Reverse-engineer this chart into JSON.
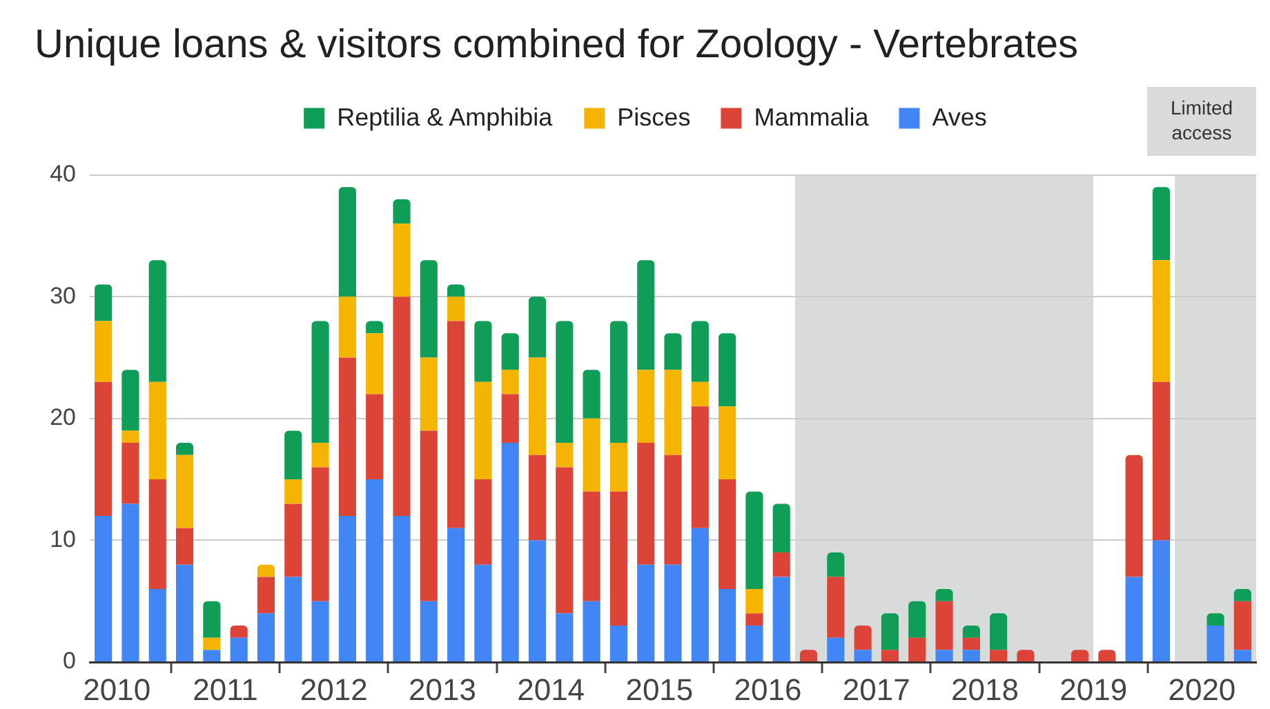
{
  "chart_data": {
    "type": "bar",
    "title": "Unique loans & visitors combined for Zoology - Vertebrates",
    "x": [
      2010.375,
      2010.625,
      2010.875,
      2011.125,
      2011.375,
      2011.625,
      2011.875,
      2012.125,
      2012.375,
      2012.625,
      2012.875,
      2013.125,
      2013.375,
      2013.625,
      2013.875,
      2014.125,
      2014.375,
      2014.625,
      2014.875,
      2015.125,
      2015.375,
      2015.625,
      2015.875,
      2016.125,
      2016.375,
      2016.625,
      2016.875,
      2017.125,
      2017.375,
      2017.625,
      2017.875,
      2018.125,
      2018.375,
      2018.625,
      2018.875,
      2019.375,
      2019.625,
      2019.875,
      2020.125,
      2020.625,
      2020.875
    ],
    "series": [
      {
        "name": "Aves",
        "color": "#4285f4",
        "values": [
          12,
          13,
          6,
          8,
          1,
          2,
          4,
          7,
          5,
          12,
          15,
          12,
          5,
          11,
          8,
          18,
          10,
          4,
          5,
          3,
          8,
          8,
          11,
          6,
          3,
          7,
          null,
          2,
          1,
          null,
          null,
          1,
          1,
          null,
          null,
          null,
          null,
          7,
          10,
          3,
          1
        ]
      },
      {
        "name": "Mammalia",
        "color": "#db4437",
        "values": [
          11,
          5,
          9,
          3,
          null,
          1,
          3,
          6,
          11,
          13,
          7,
          18,
          14,
          17,
          7,
          4,
          7,
          12,
          9,
          11,
          10,
          9,
          10,
          9,
          1,
          2,
          1,
          5,
          2,
          1,
          2,
          4,
          1,
          1,
          1,
          1,
          1,
          10,
          13,
          null,
          4
        ]
      },
      {
        "name": "Pisces",
        "color": "#f4b400",
        "values": [
          5,
          1,
          8,
          6,
          1,
          null,
          1,
          2,
          2,
          5,
          5,
          6,
          6,
          2,
          8,
          2,
          8,
          2,
          6,
          4,
          6,
          7,
          2,
          6,
          2,
          null,
          null,
          null,
          null,
          null,
          null,
          null,
          null,
          null,
          null,
          null,
          null,
          null,
          10,
          null,
          null
        ]
      },
      {
        "name": "Reptilia & Amphibia",
        "color": "#0f9d58",
        "values": [
          3,
          5,
          10,
          1,
          3,
          null,
          null,
          4,
          10,
          9,
          1,
          2,
          8,
          1,
          5,
          3,
          5,
          10,
          4,
          10,
          9,
          3,
          5,
          6,
          8,
          4,
          null,
          2,
          null,
          3,
          3,
          1,
          1,
          3,
          null,
          null,
          null,
          null,
          6,
          1,
          1
        ]
      }
    ],
    "stacked": true,
    "xlim": [
      2010.25,
      2021
    ],
    "xticks": [
      {
        "value": 2010.5,
        "label": "2010"
      },
      {
        "value": 2011,
        "label": null
      },
      {
        "value": 2011.5,
        "label": "2011"
      },
      {
        "value": 2012,
        "label": null
      },
      {
        "value": 2012.5,
        "label": "2012"
      },
      {
        "value": 2013,
        "label": null
      },
      {
        "value": 2013.5,
        "label": "2013"
      },
      {
        "value": 2014,
        "label": null
      },
      {
        "value": 2014.5,
        "label": "2014"
      },
      {
        "value": 2015,
        "label": null
      },
      {
        "value": 2015.5,
        "label": "2015"
      },
      {
        "value": 2016,
        "label": null
      },
      {
        "value": 2016.5,
        "label": "2016"
      },
      {
        "value": 2017,
        "label": null
      },
      {
        "value": 2017.5,
        "label": "2017"
      },
      {
        "value": 2018,
        "label": null
      },
      {
        "value": 2018.5,
        "label": "2018"
      },
      {
        "value": 2019,
        "label": null
      },
      {
        "value": 2019.5,
        "label": "2019"
      },
      {
        "value": 2020,
        "label": null
      },
      {
        "value": 2020.5,
        "label": "2020"
      }
    ],
    "ylim": [
      0,
      40
    ],
    "yticks": [
      0,
      10,
      20,
      30,
      40
    ],
    "grid": "y",
    "legend": "top",
    "bands": [
      {
        "axis": "x",
        "from": 2016.75,
        "to": 2019.5,
        "color": "#d9dbda"
      },
      {
        "axis": "x",
        "from": 2020.25,
        "to": 2021,
        "label": "Limited access",
        "color": "#d9dbda"
      }
    ]
  }
}
